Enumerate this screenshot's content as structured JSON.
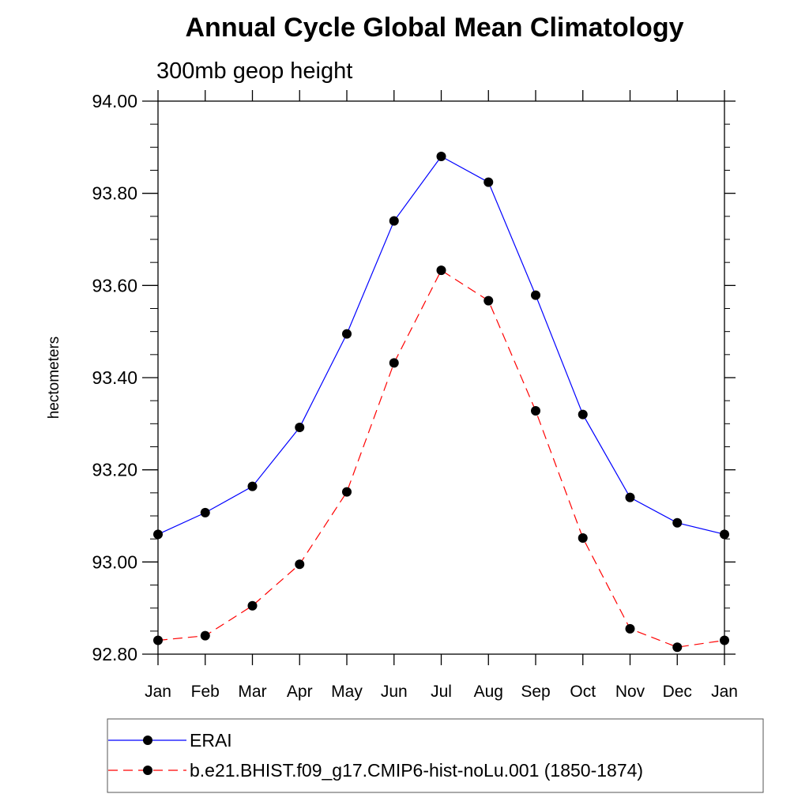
{
  "chart_data": {
    "type": "line",
    "title": "Annual Cycle Global Mean Climatology",
    "subtitle": "300mb geop height",
    "ylabel": "hectometers",
    "xlabel": "",
    "categories": [
      "Jan",
      "Feb",
      "Mar",
      "Apr",
      "May",
      "Jun",
      "Jul",
      "Aug",
      "Sep",
      "Oct",
      "Nov",
      "Dec",
      "Jan"
    ],
    "ylim": [
      92.8,
      94.0
    ],
    "yticks": [
      "92.80",
      "93.00",
      "93.20",
      "93.40",
      "93.60",
      "93.80",
      "94.00"
    ],
    "grid": false,
    "legend_position": "bottom",
    "series": [
      {
        "name": "ERAI",
        "color": "#0000ff",
        "line_style": "solid",
        "marker": "filled-circle",
        "values": [
          93.06,
          93.107,
          93.164,
          93.292,
          93.495,
          93.74,
          93.88,
          93.824,
          93.579,
          93.32,
          93.14,
          93.085,
          93.06
        ]
      },
      {
        "name": "b.e21.BHIST.f09_g17.CMIP6-hist-noLu.001 (1850-1874)",
        "color": "#ff0000",
        "line_style": "dashed",
        "marker": "filled-circle",
        "values": [
          92.83,
          92.84,
          92.905,
          92.995,
          93.152,
          93.432,
          93.633,
          93.567,
          93.328,
          93.052,
          92.855,
          92.815,
          92.83
        ]
      }
    ]
  }
}
